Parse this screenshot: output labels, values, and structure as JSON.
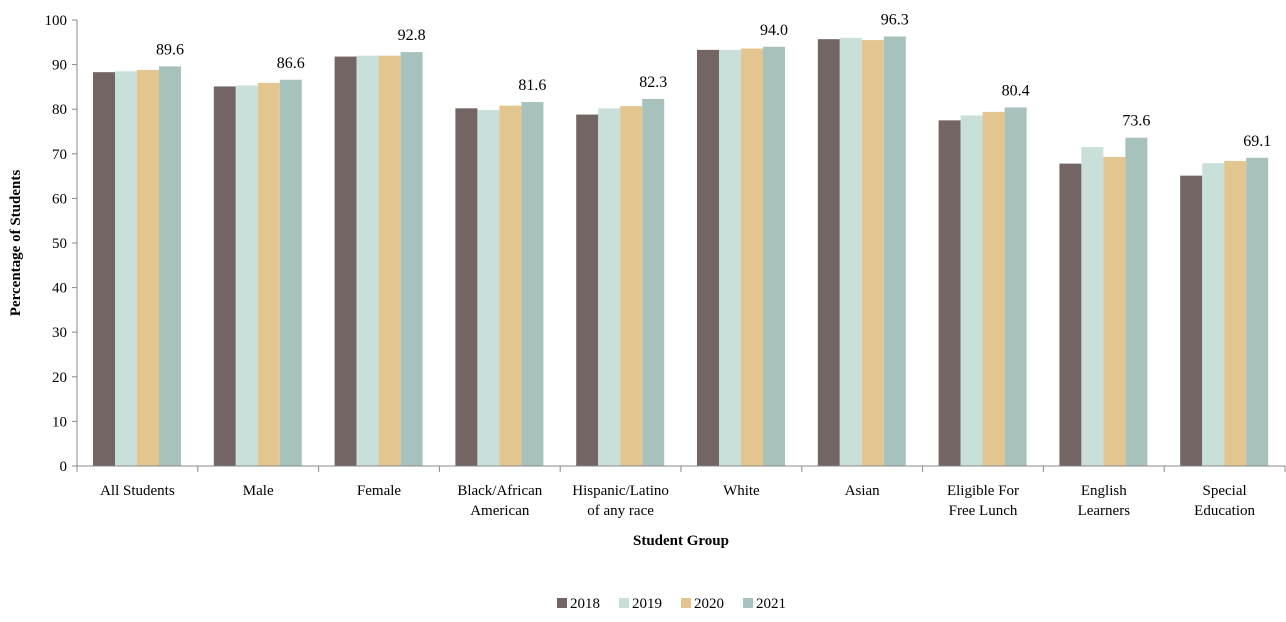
{
  "chart_data": {
    "type": "bar",
    "categories": [
      [
        "All Students"
      ],
      [
        "Male"
      ],
      [
        "Female"
      ],
      [
        "Black/African",
        "American"
      ],
      [
        "Hispanic/Latino",
        "of any race"
      ],
      [
        "White"
      ],
      [
        "Asian"
      ],
      [
        "Eligible For",
        "Free Lunch"
      ],
      [
        "English",
        "Learners"
      ],
      [
        "Special",
        "Education"
      ]
    ],
    "series": [
      {
        "name": "2018",
        "color": "#726563",
        "values": [
          88.3,
          85.1,
          91.8,
          80.2,
          78.8,
          93.3,
          95.7,
          77.5,
          67.8,
          65.1
        ]
      },
      {
        "name": "2019",
        "color": "#c9dfd9",
        "values": [
          88.5,
          85.3,
          92.0,
          79.8,
          80.2,
          93.3,
          96.0,
          78.6,
          71.5,
          67.9
        ]
      },
      {
        "name": "2020",
        "color": "#e3c590",
        "values": [
          88.8,
          85.9,
          92.0,
          80.8,
          80.7,
          93.6,
          95.5,
          79.4,
          69.3,
          68.4
        ]
      },
      {
        "name": "2021",
        "color": "#a7c2bc",
        "values": [
          89.6,
          86.6,
          92.8,
          81.6,
          82.3,
          94.0,
          96.3,
          80.4,
          73.6,
          69.1
        ]
      }
    ],
    "data_labels": [
      "89.6",
      "86.6",
      "92.8",
      "81.6",
      "82.3",
      "94.0",
      "96.3",
      "80.4",
      "73.6",
      "69.1"
    ],
    "xlabel": "Student Group",
    "ylabel": "Percentage of Students",
    "ylim": [
      0,
      100
    ],
    "yticks": [
      "0",
      "10",
      "20",
      "30",
      "40",
      "50",
      "60",
      "70",
      "80",
      "90",
      "100"
    ],
    "legend_position": "bottom",
    "grid": false
  }
}
